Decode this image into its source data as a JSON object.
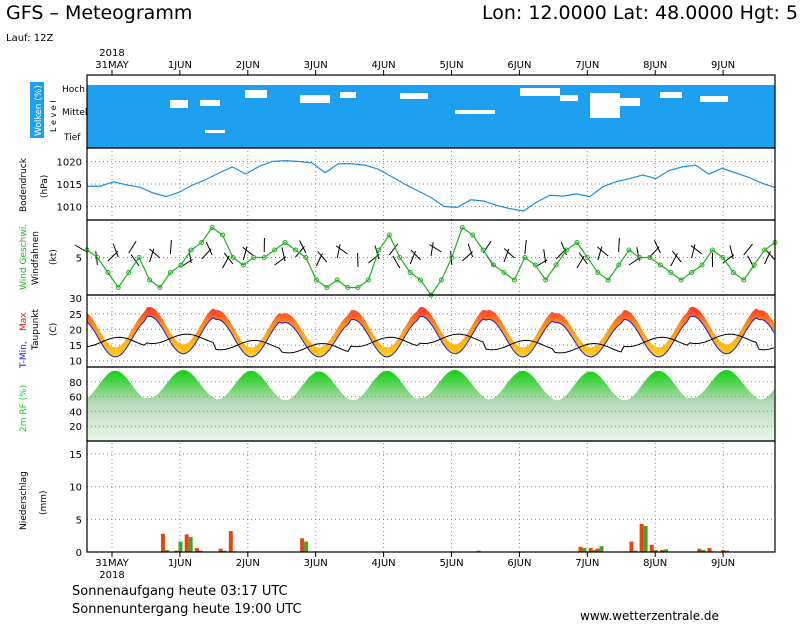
{
  "header": {
    "title": "GFS – Meteogramm",
    "coords": "Lon: 12.0000 Lat: 48.0000 Hgt: 5",
    "run": "Lauf: 12Z"
  },
  "footer": {
    "sunrise": "Sonnenaufgang heute 03:17 UTC",
    "sunset": "Sonnenuntergang heute 19:00 UTC",
    "site": "www.wetterzentrale.de"
  },
  "colors": {
    "cloud": "#1ea0f0",
    "pressure": "#1e8ee0",
    "wind": "#22b022",
    "tmax": "#e02020",
    "tmin": "#2020c0",
    "dew": "#000000",
    "rh": "#1ec81e",
    "precip_conv": "#e04810",
    "precip_large": "#4aa028"
  },
  "chart_data": {
    "type": "meteogram",
    "year_label": "2018",
    "x_days": [
      "31MAY",
      "1JUN",
      "2JUN",
      "3JUN",
      "4JUN",
      "5JUN",
      "6JUN",
      "7JUN",
      "8JUN",
      "9JUN"
    ],
    "panels": {
      "clouds": {
        "ylabel": "Wolken (%)",
        "level_label": "L e v e l",
        "levels": [
          "Hoch",
          "Mittel",
          "Tief"
        ]
      },
      "pressure": {
        "ylabel": "Bodendruck",
        "unit": "(hPa)",
        "ylim": [
          1007,
          1023
        ],
        "ticks": [
          1010,
          1015,
          1020
        ],
        "values": [
          1014.5,
          1014.5,
          1015.5,
          1014.8,
          1014.3,
          1013,
          1012.2,
          1013.2,
          1014.8,
          1016,
          1017.5,
          1018.8,
          1017.2,
          1018.9,
          1020,
          1020.2,
          1020,
          1019.7,
          1017.5,
          1019.5,
          1019.5,
          1019.2,
          1018.3,
          1016.7,
          1015,
          1013.5,
          1012,
          1010,
          1009.8,
          1011.5,
          1011.2,
          1010.2,
          1009.5,
          1009,
          1011,
          1012.5,
          1012.3,
          1012.8,
          1012.2,
          1014.4,
          1015.5,
          1016.2,
          1017,
          1016.2,
          1018,
          1018.8,
          1019.2,
          1017.2,
          1018.5,
          1017.5,
          1016.5,
          1015.2,
          1014.2
        ]
      },
      "wind": {
        "ylabel_a": "Wind Geschwi.",
        "ylabel_b": "Windfahnen",
        "unit": "(kt)",
        "ylim": [
          0,
          10
        ],
        "ticks": [
          5
        ],
        "values": [
          6,
          5,
          3,
          1,
          3,
          5,
          2,
          1,
          3,
          4,
          6,
          7,
          9,
          8,
          5,
          4,
          5,
          5,
          6,
          7,
          6,
          5,
          2,
          1,
          2,
          1,
          1,
          2,
          6,
          8,
          5,
          3,
          2,
          0,
          2,
          5,
          9,
          8,
          6,
          4,
          3,
          2,
          5,
          4,
          2,
          4,
          6,
          7,
          5,
          3,
          2,
          4,
          6,
          5,
          5,
          4,
          3,
          2,
          3,
          4,
          6,
          5,
          3,
          2,
          4,
          6,
          7
        ]
      },
      "temperature": {
        "ylabel_a": "T-Min,",
        "ylabel_b": "Max",
        "ylabel_c": "Taupunkt",
        "unit": "(C)",
        "ylim": [
          8,
          31
        ],
        "ticks": [
          10,
          15,
          20,
          25,
          30
        ],
        "tmax": [
          25,
          26,
          25,
          24
        ],
        "tmin": [
          13,
          14,
          13,
          13
        ],
        "dewpoint": [
          16,
          17,
          15,
          14
        ]
      },
      "humidity": {
        "ylabel": "2m RF (%)",
        "ylim": [
          0,
          100
        ],
        "ticks": [
          20,
          40,
          60,
          80
        ],
        "max": [
          95,
          96,
          95,
          94
        ],
        "min": [
          55,
          58,
          56,
          55
        ]
      },
      "precipitation": {
        "ylabel": "Niederschlag",
        "unit": "(mm)",
        "ylim": [
          0,
          17
        ],
        "ticks": [
          0,
          5,
          10,
          15
        ],
        "bars": [
          {
            "day": 0.75,
            "conv": 2.8,
            "large": 0.3
          },
          {
            "day": 0.95,
            "conv": 0.2,
            "large": 1.6
          },
          {
            "day": 1.1,
            "conv": 2.7,
            "large": 2.3
          },
          {
            "day": 1.25,
            "conv": 0.6,
            "large": 0.2
          },
          {
            "day": 1.6,
            "conv": 0.5,
            "large": 0.2
          },
          {
            "day": 1.75,
            "conv": 3.2,
            "large": 0.1
          },
          {
            "day": 2.8,
            "conv": 2.1,
            "large": 1.6
          },
          {
            "day": 5.4,
            "conv": 0.2,
            "large": 0.0
          },
          {
            "day": 6.9,
            "conv": 0.8,
            "large": 0.6
          },
          {
            "day": 7.05,
            "conv": 0.6,
            "large": 0.3
          },
          {
            "day": 7.15,
            "conv": 0.5,
            "large": 0.9
          },
          {
            "day": 7.65,
            "conv": 1.6,
            "large": 0.2
          },
          {
            "day": 7.8,
            "conv": 4.3,
            "large": 4.0
          },
          {
            "day": 7.95,
            "conv": 1.1,
            "large": 0.3
          },
          {
            "day": 8.1,
            "conv": 0.3,
            "large": 0.4
          },
          {
            "day": 8.65,
            "conv": 0.5,
            "large": 0.3
          },
          {
            "day": 8.8,
            "conv": 0.6,
            "large": 0.1
          },
          {
            "day": 9.0,
            "conv": 0.3,
            "large": 0.2
          }
        ]
      }
    }
  }
}
